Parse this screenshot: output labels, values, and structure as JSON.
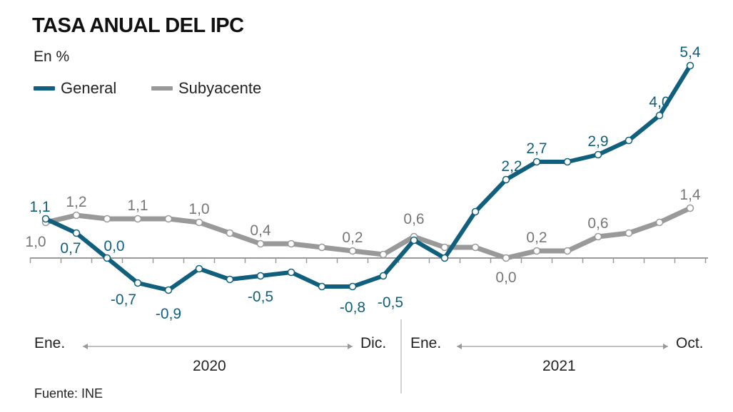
{
  "title": "TASA ANUAL DEL IPC",
  "unit": "En %",
  "source": "Fuente: INE",
  "colors": {
    "general": "#0f5f7d",
    "subyacente": "#999999"
  },
  "chart_data": {
    "type": "line",
    "title": "TASA ANUAL DEL IPC",
    "ylabel": "En %",
    "x": [
      "2020-01",
      "2020-02",
      "2020-03",
      "2020-04",
      "2020-05",
      "2020-06",
      "2020-07",
      "2020-08",
      "2020-09",
      "2020-10",
      "2020-11",
      "2020-12",
      "2021-01",
      "2021-02",
      "2021-03",
      "2021-04",
      "2021-05",
      "2021-06",
      "2021-07",
      "2021-08",
      "2021-09",
      "2021-10"
    ],
    "x_ticks": [
      {
        "label": "Ene.",
        "year": "2020"
      },
      {
        "label": "Dic.",
        "year": "2020"
      },
      {
        "label": "Ene.",
        "year": "2021"
      },
      {
        "label": "Oct.",
        "year": "2021"
      }
    ],
    "years": [
      "2020",
      "2021"
    ],
    "legend": "top-left",
    "grid": false,
    "series": [
      {
        "name": "General",
        "values": [
          1.1,
          0.7,
          0.0,
          -0.7,
          -0.9,
          -0.3,
          -0.6,
          -0.5,
          -0.4,
          -0.8,
          -0.8,
          -0.5,
          0.5,
          0.0,
          1.3,
          2.2,
          2.7,
          2.7,
          2.9,
          3.3,
          4.0,
          5.4
        ],
        "labeled": [
          0,
          1,
          2,
          3,
          4,
          7,
          10,
          11,
          15,
          16,
          18,
          20,
          21
        ]
      },
      {
        "name": "Subyacente",
        "values": [
          1.0,
          1.2,
          1.1,
          1.1,
          1.1,
          1.0,
          0.7,
          0.4,
          0.4,
          0.3,
          0.2,
          0.1,
          0.6,
          0.3,
          0.3,
          0.0,
          0.2,
          0.2,
          0.6,
          0.7,
          1.0,
          1.4
        ],
        "labeled": [
          0,
          1,
          3,
          5,
          7,
          10,
          12,
          15,
          16,
          18,
          21
        ]
      }
    ]
  }
}
